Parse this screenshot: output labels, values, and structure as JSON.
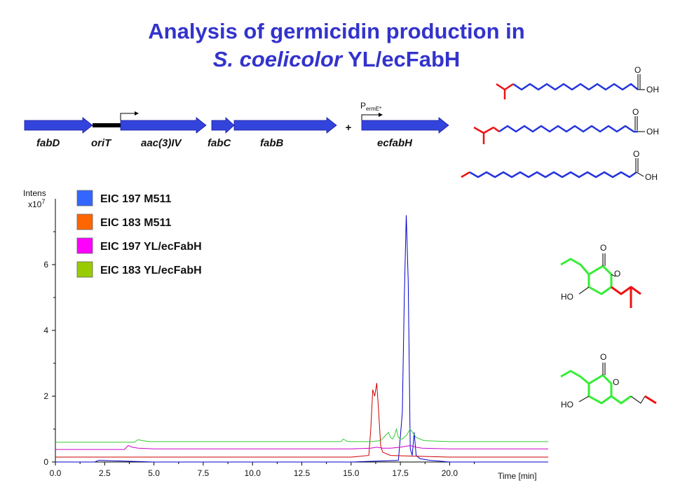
{
  "title": {
    "line1": "Analysis of germicidin production in",
    "line2_species": "S. coelicolor",
    "line2_strain": "YL/ecFabH"
  },
  "gene_construct": {
    "genes": [
      "fabD",
      "oriT",
      "aac(3)IV",
      "fabC",
      "fabB",
      "ecfabH"
    ],
    "plus": "+",
    "promoter": {
      "main": "P",
      "sub": "ermE*"
    }
  },
  "chemistry": {
    "acid_label_O": "O",
    "acid_label_OH": "OH",
    "pyrone_label_O": "O",
    "pyrone_label_HO": "HO"
  },
  "colors": {
    "title": "#3333cc",
    "eic197_m511": "#0000cc",
    "eic183_m511": "#cc0000",
    "eic197_yl": "#cc00cc",
    "eic183_yl": "#33cc33",
    "legend_eic197_m511": "#3366ff",
    "legend_eic183_m511": "#ff6600",
    "legend_eic197_yl": "#ff00ff",
    "legend_eic183_yl": "#99cc00"
  },
  "chart_data": {
    "type": "line",
    "ylabel": "Intens",
    "yunit": "x10",
    "yunit_exp": "7",
    "xlabel": "Time [min]",
    "xlim": [
      0,
      25
    ],
    "ylim": [
      0,
      8
    ],
    "xticks": [
      "0.0",
      "2.5",
      "5.0",
      "7.5",
      "10.0",
      "12.5",
      "15.0",
      "17.5",
      "20.0"
    ],
    "yticks": [
      "0",
      "2",
      "4",
      "6"
    ],
    "legend": [
      "EIC 197 M511",
      "EIC 183 M511",
      "EIC 197 YL/ecFabH",
      "EIC 183 YL/ecFabH"
    ],
    "series": [
      {
        "name": "EIC 197 M511",
        "color": "#0000cc",
        "x": [
          0.0,
          2.0,
          2.2,
          5.0,
          10.0,
          15.0,
          17.4,
          17.6,
          17.7,
          17.8,
          17.9,
          18.0,
          18.1,
          18.2,
          18.3,
          18.5,
          19.0,
          20.0,
          25.0
        ],
        "y": [
          0.0,
          0.0,
          0.05,
          0.0,
          0.0,
          0.0,
          0.05,
          1.5,
          5.0,
          7.5,
          5.5,
          0.4,
          0.2,
          0.9,
          0.2,
          0.1,
          0.05,
          0.0,
          0.0
        ]
      },
      {
        "name": "EIC 183 M511",
        "color": "#cc0000",
        "x": [
          0.0,
          5.0,
          10.0,
          15.0,
          15.9,
          16.0,
          16.1,
          16.2,
          16.3,
          16.4,
          16.5,
          16.6,
          17.0,
          18.0,
          20.0,
          25.0
        ],
        "y": [
          0.15,
          0.15,
          0.15,
          0.15,
          0.2,
          1.0,
          2.2,
          2.0,
          2.4,
          1.5,
          0.5,
          0.3,
          0.2,
          0.18,
          0.15,
          0.15
        ]
      },
      {
        "name": "EIC 197 YL/ecFabH",
        "color": "#cc00cc",
        "x": [
          0.0,
          3.5,
          3.7,
          3.9,
          4.2,
          5.0,
          10.0,
          15.0,
          16.0,
          16.3,
          16.6,
          17.0,
          17.5,
          18.0,
          18.3,
          18.6,
          20.0,
          25.0
        ],
        "y": [
          0.38,
          0.38,
          0.5,
          0.45,
          0.42,
          0.4,
          0.4,
          0.4,
          0.42,
          0.45,
          0.42,
          0.42,
          0.45,
          0.5,
          0.45,
          0.42,
          0.4,
          0.4
        ]
      },
      {
        "name": "EIC 183 YL/ecFabH",
        "color": "#33cc33",
        "x": [
          0.0,
          4.0,
          4.2,
          4.4,
          4.8,
          5.0,
          10.0,
          14.5,
          14.6,
          14.8,
          15.0,
          16.0,
          16.5,
          16.9,
          17.0,
          17.1,
          17.2,
          17.3,
          17.4,
          17.5,
          17.6,
          17.8,
          18.0,
          18.3,
          18.7,
          20.0,
          25.0
        ],
        "y": [
          0.6,
          0.6,
          0.68,
          0.65,
          0.62,
          0.62,
          0.62,
          0.62,
          0.7,
          0.63,
          0.62,
          0.62,
          0.65,
          0.9,
          0.75,
          0.7,
          0.8,
          1.0,
          0.75,
          0.7,
          0.7,
          0.8,
          1.0,
          0.75,
          0.65,
          0.62,
          0.62
        ]
      }
    ]
  }
}
